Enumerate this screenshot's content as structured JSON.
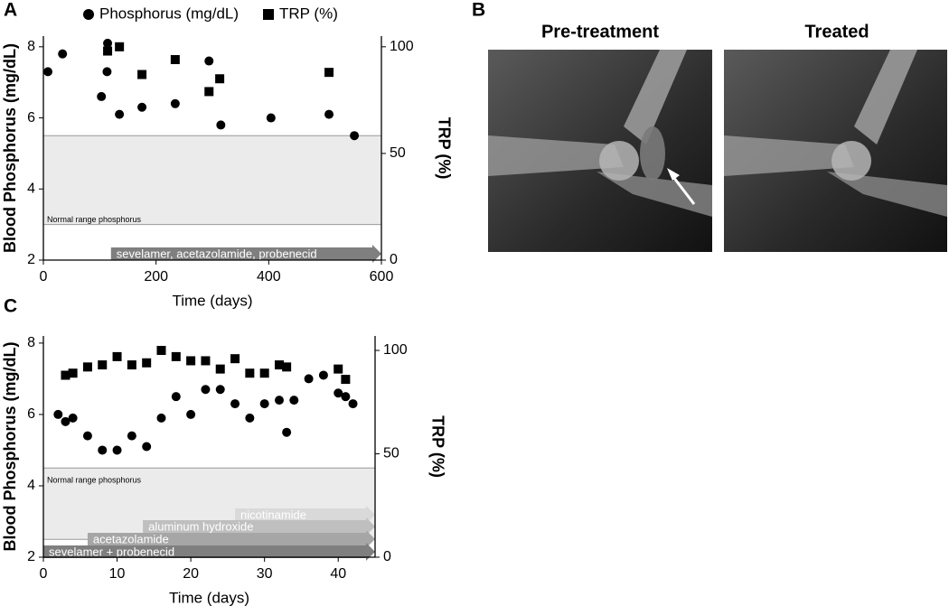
{
  "panel_labels": [
    "A",
    "B",
    "C"
  ],
  "images": {
    "titles": [
      "Pre-treatment",
      "Treated"
    ]
  },
  "chart_data": [
    {
      "type": "scatter",
      "xlabel": "Time (days)",
      "ylabel": "Blood Phosphorus (mg/dL)",
      "y2label": "TRP (%)",
      "xlim": [
        0,
        600
      ],
      "xticks": [
        0,
        200,
        400,
        600
      ],
      "ylim": [
        2,
        8.3
      ],
      "yticks": [
        2,
        4,
        6,
        8
      ],
      "y2lim": [
        0,
        105
      ],
      "y2ticks": [
        0,
        50,
        100
      ],
      "legend": "top",
      "series": [
        {
          "name": "Phosphorus (mg/dL)",
          "color": "#000000",
          "marker": "circle",
          "x": [
            8,
            34,
            103,
            113,
            114,
            135,
            175,
            234,
            294,
            315,
            404,
            507,
            552
          ],
          "values": [
            7.3,
            7.8,
            6.6,
            7.3,
            8.1,
            6.1,
            6.3,
            6.4,
            7.6,
            5.8,
            6.0,
            6.1,
            5.5
          ]
        },
        {
          "name": "TRP (%)",
          "color": "#000000",
          "marker": "square",
          "axis": "y2",
          "x": [
            114,
            135,
            175,
            234,
            294,
            313,
            507
          ],
          "values": [
            98,
            100,
            87,
            94,
            79,
            85,
            88
          ]
        }
      ],
      "shaded_range": {
        "label": "Normal range phosphorus",
        "from": 3.0,
        "to": 5.5,
        "color": "#ebebeb"
      },
      "arrows": [
        {
          "label": "sevelamer, acetazolamide, probenecid",
          "from": 120,
          "to": 600,
          "color": "#7f7f7f"
        }
      ]
    },
    {
      "type": "scatter",
      "xlabel": "Time (days)",
      "ylabel": "Blood Phosphorus (mg/dL)",
      "y2label": "TRP (%)",
      "xlim": [
        0,
        45
      ],
      "xticks": [
        0,
        10,
        20,
        30,
        40
      ],
      "ylim": [
        2,
        8.2
      ],
      "yticks": [
        2,
        4,
        6,
        8
      ],
      "y2lim": [
        0,
        107
      ],
      "y2ticks": [
        0,
        50,
        100
      ],
      "series": [
        {
          "color": "#000000",
          "marker": "circle",
          "x": [
            2,
            3,
            4,
            6,
            8,
            10,
            12,
            14,
            16,
            18,
            20,
            22,
            24,
            26,
            28,
            30,
            32,
            33,
            34,
            36,
            38,
            40,
            41,
            42
          ],
          "values": [
            6.0,
            5.8,
            5.9,
            5.4,
            5.0,
            5.0,
            5.4,
            5.1,
            5.9,
            6.5,
            6.0,
            6.7,
            6.7,
            6.3,
            5.9,
            6.3,
            6.4,
            5.5,
            6.4,
            7.0,
            7.1,
            6.6,
            6.5,
            6.3
          ]
        },
        {
          "color": "#000000",
          "marker": "square",
          "axis": "y2",
          "x": [
            3,
            4,
            6,
            8,
            10,
            12,
            14,
            16,
            18,
            20,
            22,
            24,
            26,
            28,
            30,
            32,
            33,
            40,
            41
          ],
          "values": [
            88,
            89,
            92,
            93,
            97,
            93,
            94,
            100,
            97,
            95,
            95,
            91,
            96,
            89,
            89,
            93,
            92,
            91,
            86
          ]
        }
      ],
      "shaded_range": {
        "label": "Normal range phosphorus",
        "from": 2.5,
        "to": 4.5,
        "color": "#ebebeb"
      },
      "arrows": [
        {
          "label": "nicotinamide",
          "from": 26,
          "to": 45,
          "color": "#d9d9d9"
        },
        {
          "label": "aluminum hydroxide",
          "from": 13.5,
          "to": 45,
          "color": "#bfbfbf"
        },
        {
          "label": "acetazolamide",
          "from": 6,
          "to": 45,
          "color": "#a6a6a6"
        },
        {
          "label": "sevelamer + probenecid",
          "from": 0,
          "to": 45,
          "color": "#7f7f7f"
        }
      ]
    }
  ]
}
